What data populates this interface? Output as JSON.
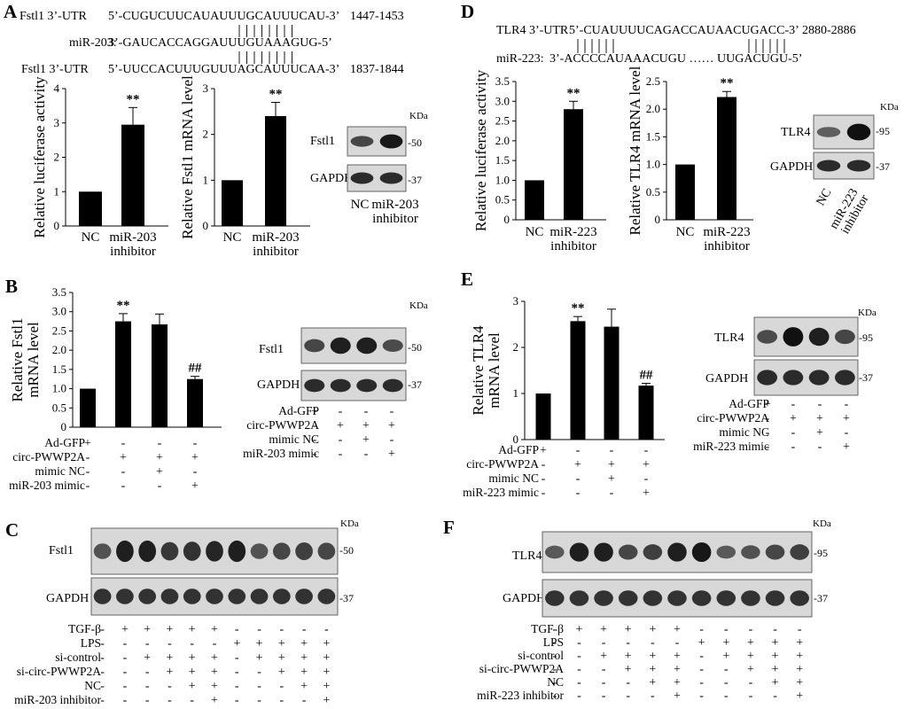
{
  "panels": {
    "A": {
      "letter": "A",
      "seq": [
        {
          "name": "Fstl1 3’-UTR",
          "seq": "5’-CUGUCUUCAUAUUUGCAUUUCAU-3’",
          "pos": "1447-1453"
        },
        {
          "name": "miR-203:",
          "seq": "3’-GAUCACCAGGAUUUGUAAAGUG-5’",
          "pos": ""
        },
        {
          "name": "Fstl1 3’-UTR",
          "seq": "5’-UUCCACUUUGUUUAGCAUUUCAA-3’",
          "pos": "1837-1844"
        }
      ],
      "luc": {
        "type": "bar",
        "categories": [
          "NC",
          "miR-203 inhibitor"
        ],
        "values": [
          1.0,
          2.95
        ],
        "errors": [
          0,
          0.5
        ],
        "ylim": [
          0,
          4
        ],
        "yticks": [
          0,
          1,
          2,
          3,
          4
        ],
        "ylabel": "Relative luciferase activity",
        "sig": [
          "",
          "**"
        ]
      },
      "mrna": {
        "type": "bar",
        "categories": [
          "NC",
          "miR-203 inhibitor"
        ],
        "values": [
          1.0,
          2.4
        ],
        "errors": [
          0,
          0.3
        ],
        "ylim": [
          0,
          3
        ],
        "yticks": [
          0,
          1,
          2,
          3
        ],
        "ylabel": "Relative Fstl1 mRNA level",
        "sig": [
          "",
          "**"
        ]
      },
      "blot": {
        "kda": "KDa",
        "bands": [
          {
            "name": "Fstl1",
            "mw": "-50"
          },
          {
            "name": "GAPDH",
            "mw": "-37"
          }
        ],
        "lanes": [
          "NC",
          "miR-203 inhibitor"
        ]
      }
    },
    "B": {
      "letter": "B",
      "chart": {
        "type": "bar",
        "categories": [
          "Ad-GFP",
          "circ-PWWP2A",
          "circ-PWWP2A + mimic NC",
          "circ-PWWP2A + miR-203 mimic"
        ],
        "values": [
          1.0,
          2.75,
          2.67,
          1.25
        ],
        "errors": [
          0,
          0.2,
          0.27,
          0.07
        ],
        "ylim": [
          0,
          3.5
        ],
        "yticks": [
          "0",
          "0.5",
          "1.0",
          "1.5",
          "2.0",
          "2.5",
          "3.0",
          "3.5"
        ],
        "ylabel": "Relative Fstl1 mRNA level",
        "sig": [
          "",
          "**",
          "",
          "##"
        ]
      },
      "conds": [
        {
          "label": "Ad-GFP",
          "marks": [
            "+",
            "-",
            "-",
            "-"
          ]
        },
        {
          "label": "circ-PWWP2A",
          "marks": [
            "-",
            "+",
            "+",
            "+"
          ]
        },
        {
          "label": "mimic NC",
          "marks": [
            "-",
            "-",
            "+",
            "-"
          ]
        },
        {
          "label": "miR-203 mimic",
          "marks": [
            "-",
            "-",
            "-",
            "+"
          ]
        }
      ],
      "blot": {
        "kda": "KDa",
        "bands": [
          {
            "name": "Fstl1",
            "mw": "-50"
          },
          {
            "name": "GAPDH",
            "mw": "-37"
          }
        ]
      }
    },
    "C": {
      "letter": "C",
      "blot": {
        "kda": "KDa",
        "bands": [
          {
            "name": "Fstl1",
            "mw": "-50"
          },
          {
            "name": "GAPDH",
            "mw": "-37"
          }
        ],
        "intensity": [
          0.45,
          0.85,
          0.85,
          0.65,
          0.7,
          0.8,
          0.85,
          0.45,
          0.55,
          0.6,
          0.55
        ]
      },
      "conds": [
        {
          "label": "TGF-β",
          "marks": [
            "-",
            "+",
            "+",
            "+",
            "+",
            "+",
            "-",
            "-",
            "-",
            "-",
            "-"
          ]
        },
        {
          "label": "LPS",
          "marks": [
            "-",
            "-",
            "-",
            "-",
            "-",
            "-",
            "+",
            "+",
            "+",
            "+",
            "+"
          ]
        },
        {
          "label": "si-control",
          "marks": [
            "-",
            "-",
            "+",
            "+",
            "+",
            "+",
            "-",
            "+",
            "+",
            "+",
            "+"
          ]
        },
        {
          "label": "si-circ-PWWP2A",
          "marks": [
            "-",
            "-",
            "-",
            "+",
            "+",
            "+",
            "-",
            "-",
            "+",
            "+",
            "+"
          ]
        },
        {
          "label": "NC",
          "marks": [
            "-",
            "-",
            "-",
            "-",
            "+",
            "+",
            "-",
            "-",
            "-",
            "+",
            "+"
          ]
        },
        {
          "label": "miR-203 inhibitor",
          "marks": [
            "-",
            "-",
            "-",
            "-",
            "-",
            "+",
            "-",
            "-",
            "-",
            "-",
            "+"
          ]
        }
      ]
    },
    "D": {
      "letter": "D",
      "seq": [
        {
          "name": "TLR4  3’-UTR",
          "seq": "5’-CUAUUUUCAGACCAUAACUGACC-3’",
          "pos": "2880-2886"
        },
        {
          "name": "miR-223:",
          "seq": "3’-ACCCCAUAAACUGU  ……  UUGACUGU-5’",
          "pos": ""
        }
      ],
      "luc": {
        "type": "bar",
        "categories": [
          "NC",
          "miR-223 inhibitor"
        ],
        "values": [
          1.0,
          2.8
        ],
        "errors": [
          0,
          0.2
        ],
        "ylim": [
          0,
          3.5
        ],
        "yticks": [
          "0",
          "0.5",
          "1.0",
          "1.5",
          "2.0",
          "2.5",
          "3.0",
          "3.5"
        ],
        "ylabel": "Relative luciferase activity",
        "sig": [
          "",
          "**"
        ]
      },
      "mrna": {
        "type": "bar",
        "categories": [
          "NC",
          "miR-223 inhibitor"
        ],
        "values": [
          1.0,
          2.22
        ],
        "errors": [
          0,
          0.1
        ],
        "ylim": [
          0,
          2.5
        ],
        "yticks": [
          "0",
          "0.5",
          "1.0",
          "1.5",
          "2.0",
          "2.5"
        ],
        "ylabel": "Relative TLR4 mRNA level",
        "sig": [
          "",
          "**"
        ]
      },
      "blot": {
        "kda": "KDa",
        "bands": [
          {
            "name": "TLR4",
            "mw": "-95"
          },
          {
            "name": "GAPDH",
            "mw": "-37"
          }
        ],
        "lanes": [
          "NC",
          "miR-223 inhibitor"
        ]
      }
    },
    "E": {
      "letter": "E",
      "chart": {
        "type": "bar",
        "categories": [
          "Ad-GFP",
          "circ-PWWP2A",
          "circ-PWWP2A + mimic NC",
          "circ-PWWP2A + miR-223 mimic"
        ],
        "values": [
          1.0,
          2.57,
          2.45,
          1.17
        ],
        "errors": [
          0,
          0.1,
          0.38,
          0.05
        ],
        "ylim": [
          0,
          3
        ],
        "yticks": [
          "0",
          "1",
          "2",
          "3"
        ],
        "ylabel": "Relative TLR4 mRNA level",
        "sig": [
          "",
          "**",
          "",
          "##"
        ]
      },
      "conds": [
        {
          "label": "Ad-GFP",
          "marks": [
            "+",
            "-",
            "-",
            "-"
          ]
        },
        {
          "label": "circ-PWWP2A",
          "marks": [
            "-",
            "+",
            "+",
            "+"
          ]
        },
        {
          "label": "mimic NC",
          "marks": [
            "-",
            "-",
            "+",
            "-"
          ]
        },
        {
          "label": "miR-223 mimic",
          "marks": [
            "-",
            "-",
            "-",
            "+"
          ]
        }
      ],
      "blot": {
        "kda": "KDa",
        "bands": [
          {
            "name": "TLR4",
            "mw": "-95"
          },
          {
            "name": "GAPDH",
            "mw": "-37"
          }
        ]
      }
    },
    "F": {
      "letter": "F",
      "blot": {
        "kda": "KDa",
        "bands": [
          {
            "name": "TLR4",
            "mw": "-95"
          },
          {
            "name": "GAPDH",
            "mw": "-37"
          }
        ],
        "intensity": [
          0.4,
          0.85,
          0.85,
          0.55,
          0.6,
          0.85,
          0.9,
          0.4,
          0.45,
          0.55,
          0.6
        ]
      },
      "conds": [
        {
          "label": "TGF-β",
          "marks": [
            "-",
            "+",
            "+",
            "+",
            "+",
            "+",
            "-",
            "-",
            "-",
            "-",
            "-"
          ]
        },
        {
          "label": "LPS",
          "marks": [
            "-",
            "-",
            "-",
            "-",
            "-",
            "-",
            "+",
            "+",
            "+",
            "+",
            "+"
          ]
        },
        {
          "label": "si-control",
          "marks": [
            "-",
            "-",
            "+",
            "+",
            "+",
            "+",
            "-",
            "+",
            "+",
            "+",
            "+"
          ]
        },
        {
          "label": "si-circ-PWWP2A",
          "marks": [
            "-",
            "-",
            "-",
            "+",
            "+",
            "+",
            "-",
            "-",
            "+",
            "+",
            "+"
          ]
        },
        {
          "label": "NC",
          "marks": [
            "-",
            "-",
            "-",
            "-",
            "+",
            "+",
            "-",
            "-",
            "-",
            "+",
            "+"
          ]
        },
        {
          "label": "miR-223 inhibitor",
          "marks": [
            "-",
            "-",
            "-",
            "-",
            "-",
            "+",
            "-",
            "-",
            "-",
            "-",
            "+"
          ]
        }
      ]
    }
  }
}
